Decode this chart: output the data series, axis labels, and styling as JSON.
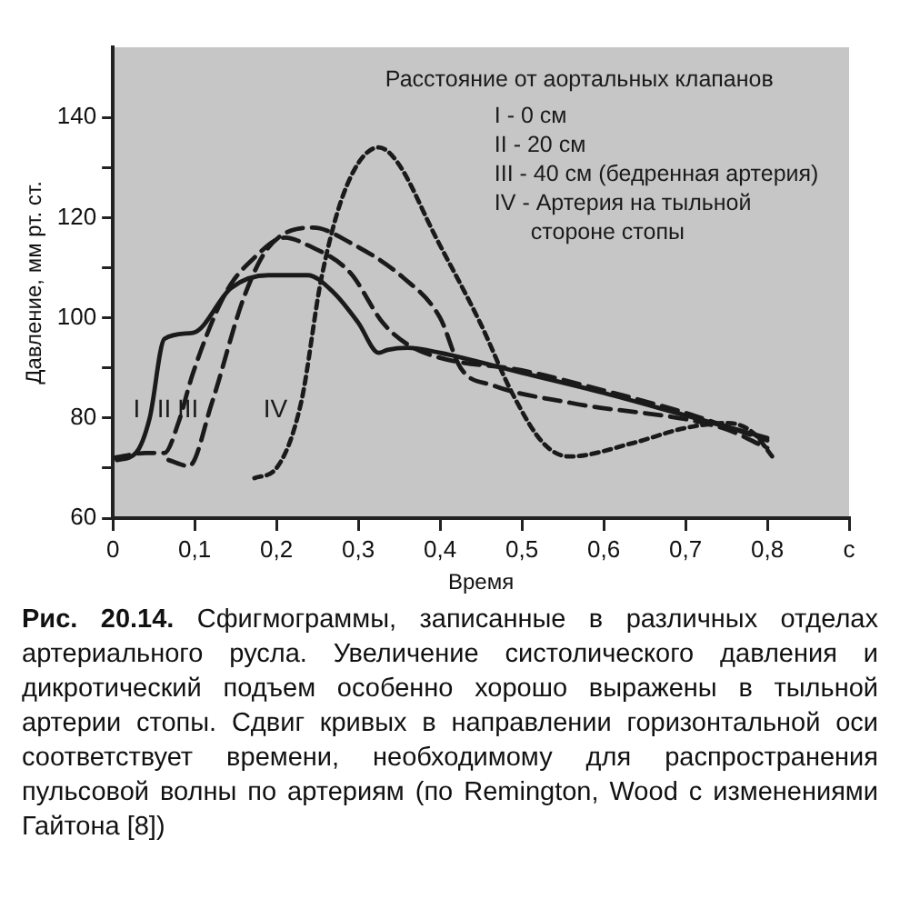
{
  "chart_data": {
    "type": "line",
    "xlabel": "Время",
    "ylabel": "Давление, мм рт. ст.",
    "xlim": [
      0,
      0.9
    ],
    "ylim": [
      60,
      154
    ],
    "xticks": [
      0,
      {
        "value": 0.1,
        "label": "0,1"
      },
      {
        "value": 0.2,
        "label": "0,2"
      },
      {
        "value": 0.3,
        "label": "0,3"
      },
      {
        "value": 0.4,
        "label": "0,4"
      },
      {
        "value": 0.5,
        "label": "0,5"
      },
      {
        "value": 0.6,
        "label": "0,6"
      },
      {
        "value": 0.7,
        "label": "0,7"
      },
      {
        "value": 0.8,
        "label": "0,8"
      },
      {
        "value": 0.9,
        "label": "с"
      }
    ],
    "yticks": [
      60,
      {
        "value": 70,
        "label": null
      },
      80,
      {
        "value": 90,
        "label": null
      },
      100,
      {
        "value": 110,
        "label": null
      },
      120,
      {
        "value": 130,
        "label": null
      },
      140
    ],
    "grid": false,
    "legend": false,
    "marker": "none",
    "series": [
      {
        "name": "I",
        "color": "#1a1a1a",
        "line_style": "solid",
        "x": [
          0.005,
          0.028,
          0.045,
          0.063,
          0.098,
          0.145,
          0.19,
          0.238,
          0.27,
          0.3,
          0.325,
          0.336,
          0.36,
          0.4,
          0.5,
          0.6,
          0.7,
          0.8
        ],
        "values": [
          71.6,
          73,
          80,
          95.8,
          97,
          106,
          108.5,
          108.5,
          105,
          99,
          93,
          93.6,
          94,
          93,
          89,
          85,
          80.5,
          76
        ]
      },
      {
        "name": "II",
        "color": "#1a1a1a",
        "line_style": "dashed",
        "x": [
          0,
          0.04,
          0.063,
          0.08,
          0.098,
          0.138,
          0.173,
          0.21,
          0.238,
          0.29,
          0.33,
          0.36,
          0.4,
          0.5,
          0.6,
          0.7,
          0.8
        ],
        "values": [
          72,
          73,
          73,
          79,
          89,
          105,
          112,
          116,
          114.5,
          109,
          99,
          94.7,
          92,
          89.5,
          85.5,
          81,
          75.5
        ]
      },
      {
        "name": "III",
        "color": "#1a1a1a",
        "line_style": "dashed",
        "x": [
          0.068,
          0.093,
          0.121,
          0.16,
          0.19,
          0.245,
          0.29,
          0.355,
          0.4,
          0.425,
          0.465,
          0.56,
          0.745,
          0.8
        ],
        "values": [
          71.6,
          70.4,
          83,
          104,
          114,
          118,
          115,
          108,
          100,
          90,
          86.5,
          83,
          78,
          74
        ]
      },
      {
        "name": "IV",
        "color": "#1a1a1a",
        "line_style": "dotted",
        "x": [
          0.173,
          0.2,
          0.23,
          0.255,
          0.285,
          0.325,
          0.348,
          0.395,
          0.449,
          0.488,
          0.526,
          0.558,
          0.636,
          0.7,
          0.752,
          0.783,
          0.806
        ],
        "values": [
          68,
          70,
          83,
          108,
          126,
          134,
          131,
          116,
          99,
          85,
          75,
          72.3,
          75,
          78,
          79,
          77,
          72.3
        ]
      }
    ],
    "annotations": [
      "Расстояние от аортальных клапанов",
      "I - 0 см",
      "II - 20 см",
      "III - 40 см (бедренная артерия)",
      "IV - Артерия на тыльной стороне стопы",
      "Рис. 20.14.",
      "Сфигмограммы, записанные в различных отделах артериального русла. Увеличение систолического давления и дикротический подъем особенно хорошо выражены в тыльной артерии стопы. Сдвиг кривых в направлении горизонтальной оси соответствует времени, необходимому для распространения пульсовой волны по артериям (по Remington, Wood с изменениями Гайтона [8])"
    ]
  }
}
